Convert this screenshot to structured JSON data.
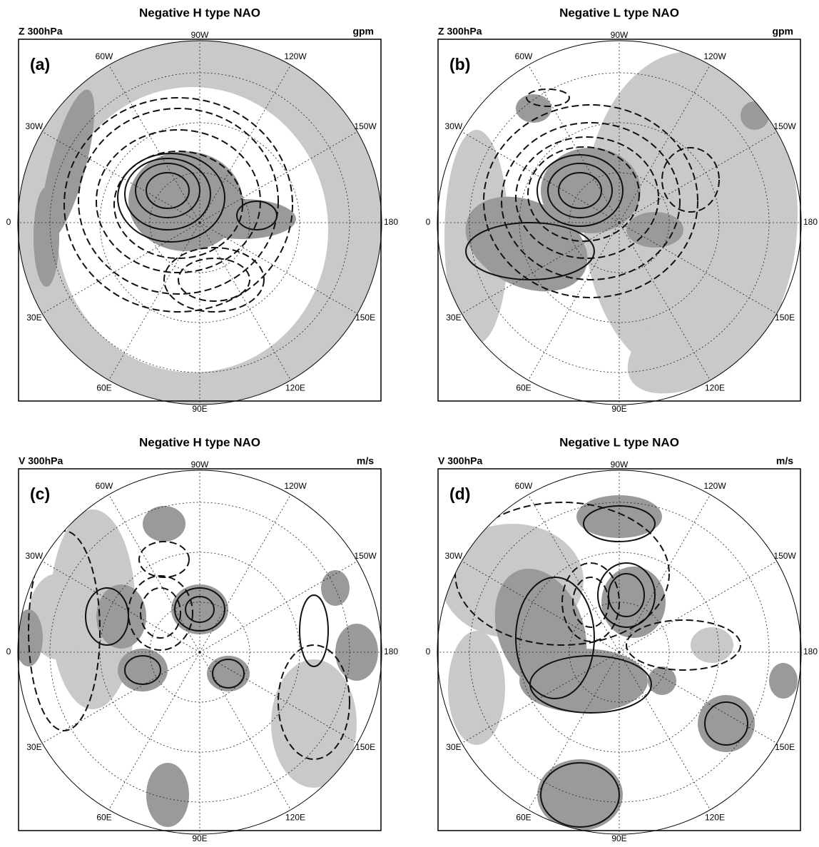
{
  "panels": [
    {
      "title": "Negative H type NAO",
      "variable": "Z 300hPa",
      "unit": "gpm",
      "label": "(a)"
    },
    {
      "title": "Negative L type NAO",
      "variable": "Z 300hPa",
      "unit": "gpm",
      "label": "(b)"
    },
    {
      "title": "Negative H type NAO",
      "variable": "V 300hPa",
      "unit": "m/s",
      "label": "(c)"
    },
    {
      "title": "Negative L type NAO",
      "variable": "V 300hPa",
      "unit": "m/s",
      "label": "(d)"
    }
  ],
  "longitude_labels": [
    "90W",
    "120W",
    "150W",
    "180",
    "150E",
    "120E",
    "90E",
    "60E",
    "30E",
    "0",
    "30W",
    "60W"
  ]
}
